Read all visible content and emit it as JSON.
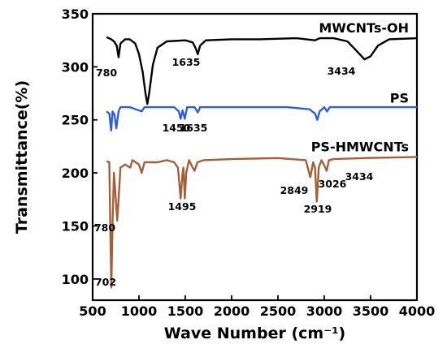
{
  "chart_data": {
    "type": "line",
    "title": "",
    "xlabel": "Wave Number (cm⁻¹)",
    "ylabel": "Transmittance(%)",
    "xlim": [
      500,
      4000
    ],
    "ylim": [
      80,
      350
    ],
    "x_ticks": [
      "500",
      "1000",
      "1500",
      "2000",
      "2500",
      "3000",
      "3500",
      "4000"
    ],
    "y_ticks": [
      "100",
      "150",
      "200",
      "250",
      "300",
      "350"
    ],
    "grid": false,
    "legend": "series names labeled directly above each curve",
    "series": [
      {
        "name": "MWCNTs-OH",
        "color": "#000000",
        "baseline": 327,
        "points": [
          [
            650,
            328
          ],
          [
            700,
            326
          ],
          [
            730,
            324
          ],
          [
            760,
            320
          ],
          [
            780,
            309
          ],
          [
            800,
            322
          ],
          [
            850,
            326
          ],
          [
            900,
            326
          ],
          [
            960,
            322
          ],
          [
            1000,
            312
          ],
          [
            1040,
            295
          ],
          [
            1070,
            275
          ],
          [
            1090,
            265
          ],
          [
            1110,
            275
          ],
          [
            1150,
            302
          ],
          [
            1200,
            318
          ],
          [
            1300,
            324
          ],
          [
            1500,
            325
          ],
          [
            1580,
            323
          ],
          [
            1610,
            318
          ],
          [
            1635,
            312
          ],
          [
            1660,
            320
          ],
          [
            1720,
            325
          ],
          [
            2000,
            326
          ],
          [
            2300,
            326
          ],
          [
            2700,
            327
          ],
          [
            2900,
            325
          ],
          [
            2950,
            327
          ],
          [
            3100,
            327
          ],
          [
            3250,
            324
          ],
          [
            3350,
            315
          ],
          [
            3434,
            307
          ],
          [
            3500,
            310
          ],
          [
            3580,
            320
          ],
          [
            3700,
            326
          ],
          [
            4000,
            327
          ]
        ],
        "peak_labels": [
          {
            "wavenumber": 780,
            "text": "780"
          },
          {
            "wavenumber": 1635,
            "text": "1635"
          },
          {
            "wavenumber": 3434,
            "text": "3434"
          }
        ]
      },
      {
        "name": "PS",
        "color": "#2f5fd6",
        "baseline": 261,
        "points": [
          [
            650,
            258
          ],
          [
            680,
            256
          ],
          [
            700,
            240
          ],
          [
            715,
            258
          ],
          [
            735,
            255
          ],
          [
            755,
            242
          ],
          [
            780,
            258
          ],
          [
            800,
            262
          ],
          [
            900,
            262
          ],
          [
            1030,
            258
          ],
          [
            1060,
            262
          ],
          [
            1200,
            262
          ],
          [
            1380,
            262
          ],
          [
            1430,
            258
          ],
          [
            1450,
            251
          ],
          [
            1470,
            259
          ],
          [
            1495,
            251
          ],
          [
            1520,
            262
          ],
          [
            1600,
            262
          ],
          [
            1635,
            257
          ],
          [
            1660,
            262
          ],
          [
            2000,
            262
          ],
          [
            2600,
            262
          ],
          [
            2840,
            260
          ],
          [
            2900,
            256
          ],
          [
            2925,
            250
          ],
          [
            2950,
            258
          ],
          [
            3000,
            262
          ],
          [
            3030,
            258
          ],
          [
            3060,
            262
          ],
          [
            3200,
            262
          ],
          [
            4000,
            262
          ]
        ],
        "peak_labels": [
          {
            "wavenumber": 1450,
            "text": "1450"
          },
          {
            "wavenumber": 1635,
            "text": "1635"
          }
        ]
      },
      {
        "name": "PS-HMWCNTs",
        "color": "#a0603a",
        "baseline": 215,
        "points": [
          [
            650,
            211
          ],
          [
            680,
            210
          ],
          [
            690,
            150
          ],
          [
            702,
            92
          ],
          [
            714,
            150
          ],
          [
            730,
            200
          ],
          [
            750,
            175
          ],
          [
            765,
            155
          ],
          [
            780,
            175
          ],
          [
            800,
            205
          ],
          [
            850,
            208
          ],
          [
            905,
            205
          ],
          [
            930,
            212
          ],
          [
            1000,
            208
          ],
          [
            1030,
            200
          ],
          [
            1060,
            210
          ],
          [
            1150,
            210
          ],
          [
            1200,
            210
          ],
          [
            1300,
            212
          ],
          [
            1380,
            210
          ],
          [
            1420,
            205
          ],
          [
            1450,
            176
          ],
          [
            1470,
            200
          ],
          [
            1480,
            205
          ],
          [
            1495,
            176
          ],
          [
            1510,
            200
          ],
          [
            1540,
            212
          ],
          [
            1580,
            205
          ],
          [
            1600,
            202
          ],
          [
            1630,
            210
          ],
          [
            1700,
            212
          ],
          [
            2000,
            213
          ],
          [
            2500,
            214
          ],
          [
            2800,
            212
          ],
          [
            2849,
            196
          ],
          [
            2880,
            210
          ],
          [
            2900,
            205
          ],
          [
            2919,
            173
          ],
          [
            2940,
            205
          ],
          [
            2970,
            212
          ],
          [
            3000,
            207
          ],
          [
            3026,
            202
          ],
          [
            3050,
            212
          ],
          [
            3100,
            213
          ],
          [
            3434,
            214
          ],
          [
            4000,
            215
          ]
        ],
        "peak_labels": [
          {
            "wavenumber": 780,
            "text": "780"
          },
          {
            "wavenumber": 702,
            "text": "702"
          },
          {
            "wavenumber": 1495,
            "text": "1495"
          },
          {
            "wavenumber": 2849,
            "text": "2849"
          },
          {
            "wavenumber": 2919,
            "text": "2919"
          },
          {
            "wavenumber": 3026,
            "text": "3026"
          },
          {
            "wavenumber": 3434,
            "text": "3434"
          }
        ]
      }
    ]
  }
}
